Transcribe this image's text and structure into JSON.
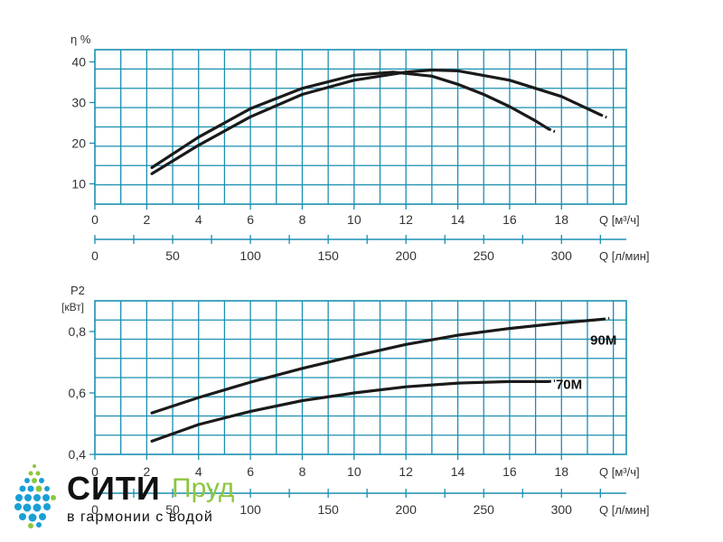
{
  "chart_data": [
    {
      "type": "line",
      "ylabel": "η %",
      "xlabel": "Q [м³/ч]",
      "xlabel2": "Q [л/мин]",
      "xlim": [
        0,
        20.5
      ],
      "ylim": [
        5,
        43
      ],
      "xticks": [
        0,
        2,
        4,
        6,
        8,
        10,
        12,
        14,
        16,
        18
      ],
      "yticks": [
        10,
        20,
        30,
        40
      ],
      "x2ticks": [
        0,
        50,
        100,
        150,
        200,
        250,
        300
      ],
      "grid": true,
      "series": [
        {
          "x": [
            2.2,
            4,
            6,
            8,
            10,
            11.5,
            13,
            14,
            15,
            16,
            17,
            17.5
          ],
          "y": [
            14,
            21.5,
            28.5,
            33.5,
            36.7,
            37.5,
            36.5,
            34.5,
            32,
            29,
            25.5,
            23.5
          ]
        },
        {
          "x": [
            2.2,
            4,
            6,
            8,
            10,
            12,
            13,
            14,
            16,
            18,
            19.5
          ],
          "y": [
            12.5,
            19.5,
            26.5,
            32,
            35.5,
            37.5,
            38,
            37.8,
            35.5,
            31.5,
            27
          ]
        }
      ]
    },
    {
      "type": "line",
      "ylabel": "P2",
      "ylabel2": "[кВт]",
      "xlabel": "Q [м³/ч]",
      "xlabel2": "Q [л/мин]",
      "xlim": [
        0,
        20.5
      ],
      "ylim": [
        0.4,
        0.9
      ],
      "xticks": [
        0,
        2,
        4,
        6,
        8,
        10,
        12,
        14,
        16,
        18
      ],
      "yticks": [
        0.4,
        0.6,
        0.8
      ],
      "ytick_labels": [
        "0,4",
        "0,6",
        "0,8"
      ],
      "x2ticks": [
        0,
        50,
        100,
        150,
        200,
        250,
        300
      ],
      "grid": true,
      "series": [
        {
          "name": "90M",
          "x": [
            2.2,
            4,
            6,
            8,
            10,
            12,
            14,
            16,
            18,
            19.6
          ],
          "y": [
            0.535,
            0.585,
            0.635,
            0.68,
            0.72,
            0.758,
            0.788,
            0.81,
            0.828,
            0.84
          ]
        },
        {
          "name": "70M",
          "x": [
            2.2,
            4,
            6,
            8,
            10,
            12,
            14,
            16,
            17.5
          ],
          "y": [
            0.443,
            0.497,
            0.54,
            0.575,
            0.6,
            0.62,
            0.632,
            0.637,
            0.637
          ]
        }
      ]
    }
  ],
  "logo": {
    "word1": "СИТИ",
    "word2": "Пруд",
    "tagline": "в гармонии с водой"
  },
  "colors": {
    "grid": "#1a8fb0",
    "curve": "#1a1a1a",
    "logo_green": "#8cc63f",
    "logo_blue": "#1a9fd6"
  }
}
